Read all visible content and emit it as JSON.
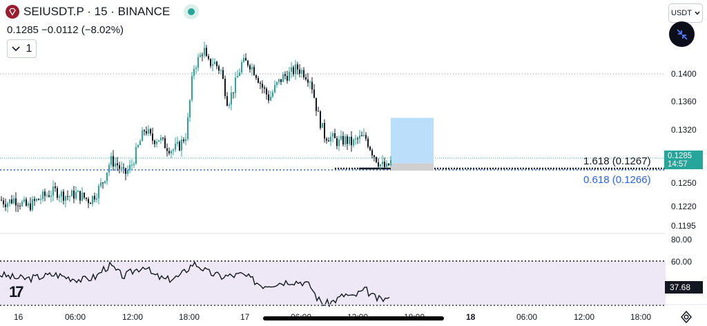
{
  "header": {
    "symbol": "SEIUSDT.P · 15 · BINANCE",
    "quote": "0.1285  −0.0112 (−8.02%)",
    "series_count": "1",
    "currency": "USDT",
    "logo_icon": "sei-diamond-icon",
    "live_icon": "market-open-dot-icon"
  },
  "price_axis": {
    "ticks": [
      "0.1400",
      "0.1360",
      "0.1320",
      "0.1250",
      "0.1220",
      "0.1195"
    ],
    "last_price": "0.1285",
    "countdown": "14:57"
  },
  "fib_labels": {
    "level1": "1.618 (0.1267)",
    "level2": "0.618 (0.1266)"
  },
  "rsi": {
    "ticks": [
      "80.00",
      "60.00"
    ],
    "value": "37.68"
  },
  "time_axis": [
    "16",
    "06:00",
    "12:00",
    "18:00",
    "17",
    "06:00",
    "12:00",
    "18:00",
    "18",
    "06:00",
    "12:00",
    "18:00"
  ],
  "colors": {
    "up": "#26a69a",
    "down": "#131722",
    "fib_blue": "#2962ff",
    "rsi_band": "#ede7f6",
    "target_box": "#bbdefb",
    "stop_box": "#cfcfcf"
  },
  "chart_data": {
    "type": "candlestick",
    "interval": "15",
    "price_range": [
      0.119,
      0.1445
    ],
    "close_points": [
      [
        0,
        0.1228
      ],
      [
        10,
        0.1224
      ],
      [
        20,
        0.1229
      ],
      [
        30,
        0.1224
      ],
      [
        40,
        0.1218
      ],
      [
        50,
        0.1225
      ],
      [
        60,
        0.1231
      ],
      [
        70,
        0.1236
      ],
      [
        80,
        0.124
      ],
      [
        90,
        0.1235
      ],
      [
        100,
        0.1233
      ],
      [
        110,
        0.1236
      ],
      [
        120,
        0.1232
      ],
      [
        130,
        0.1227
      ],
      [
        140,
        0.1238
      ],
      [
        150,
        0.1255
      ],
      [
        160,
        0.1282
      ],
      [
        170,
        0.1276
      ],
      [
        180,
        0.1262
      ],
      [
        190,
        0.1274
      ],
      [
        200,
        0.13
      ],
      [
        210,
        0.1326
      ],
      [
        220,
        0.131
      ],
      [
        230,
        0.1312
      ],
      [
        240,
        0.1302
      ],
      [
        250,
        0.1296
      ],
      [
        260,
        0.1302
      ],
      [
        270,
        0.1318
      ],
      [
        280,
        0.1408
      ],
      [
        290,
        0.1424
      ],
      [
        295,
        0.1436
      ],
      [
        300,
        0.1414
      ],
      [
        310,
        0.1416
      ],
      [
        320,
        0.1404
      ],
      [
        330,
        0.136
      ],
      [
        340,
        0.1384
      ],
      [
        350,
        0.1414
      ],
      [
        360,
        0.1416
      ],
      [
        370,
        0.1402
      ],
      [
        380,
        0.1382
      ],
      [
        390,
        0.1366
      ],
      [
        400,
        0.1384
      ],
      [
        410,
        0.1396
      ],
      [
        420,
        0.14
      ],
      [
        430,
        0.1408
      ],
      [
        440,
        0.1402
      ],
      [
        450,
        0.1392
      ],
      [
        460,
        0.1346
      ],
      [
        470,
        0.1316
      ],
      [
        480,
        0.1313
      ],
      [
        490,
        0.1306
      ],
      [
        500,
        0.131
      ],
      [
        510,
        0.1305
      ],
      [
        520,
        0.1312
      ],
      [
        530,
        0.1312
      ],
      [
        540,
        0.1292
      ],
      [
        550,
        0.1277
      ],
      [
        560,
        0.1271
      ],
      [
        566,
        0.128
      ]
    ],
    "last": 0.1285,
    "rsi": {
      "range": [
        20,
        85
      ],
      "levels": [
        70,
        30
      ],
      "points": [
        [
          0,
          58
        ],
        [
          20,
          55
        ],
        [
          40,
          54
        ],
        [
          60,
          56
        ],
        [
          80,
          58
        ],
        [
          100,
          55
        ],
        [
          120,
          53
        ],
        [
          140,
          56
        ],
        [
          150,
          63
        ],
        [
          160,
          66
        ],
        [
          170,
          60
        ],
        [
          180,
          56
        ],
        [
          190,
          60
        ],
        [
          200,
          63
        ],
        [
          210,
          66
        ],
        [
          220,
          58
        ],
        [
          240,
          53
        ],
        [
          260,
          56
        ],
        [
          270,
          62
        ],
        [
          280,
          68
        ],
        [
          290,
          65
        ],
        [
          300,
          60
        ],
        [
          320,
          56
        ],
        [
          340,
          57
        ],
        [
          350,
          58
        ],
        [
          360,
          55
        ],
        [
          380,
          48
        ],
        [
          400,
          50
        ],
        [
          420,
          52
        ],
        [
          440,
          51
        ],
        [
          450,
          47
        ],
        [
          460,
          36
        ],
        [
          470,
          31
        ],
        [
          480,
          33
        ],
        [
          490,
          36
        ],
        [
          500,
          40
        ],
        [
          510,
          37
        ],
        [
          520,
          41
        ],
        [
          530,
          44
        ],
        [
          540,
          38
        ],
        [
          550,
          35
        ],
        [
          560,
          36
        ],
        [
          566,
          37.68
        ]
      ]
    },
    "fib_levels": [
      {
        "ratio": "1.618",
        "price": 0.1267
      },
      {
        "ratio": "0.618",
        "price": 0.1266
      }
    ],
    "position": {
      "entry": 0.1278,
      "target": 0.134,
      "stop": 0.1268
    }
  }
}
